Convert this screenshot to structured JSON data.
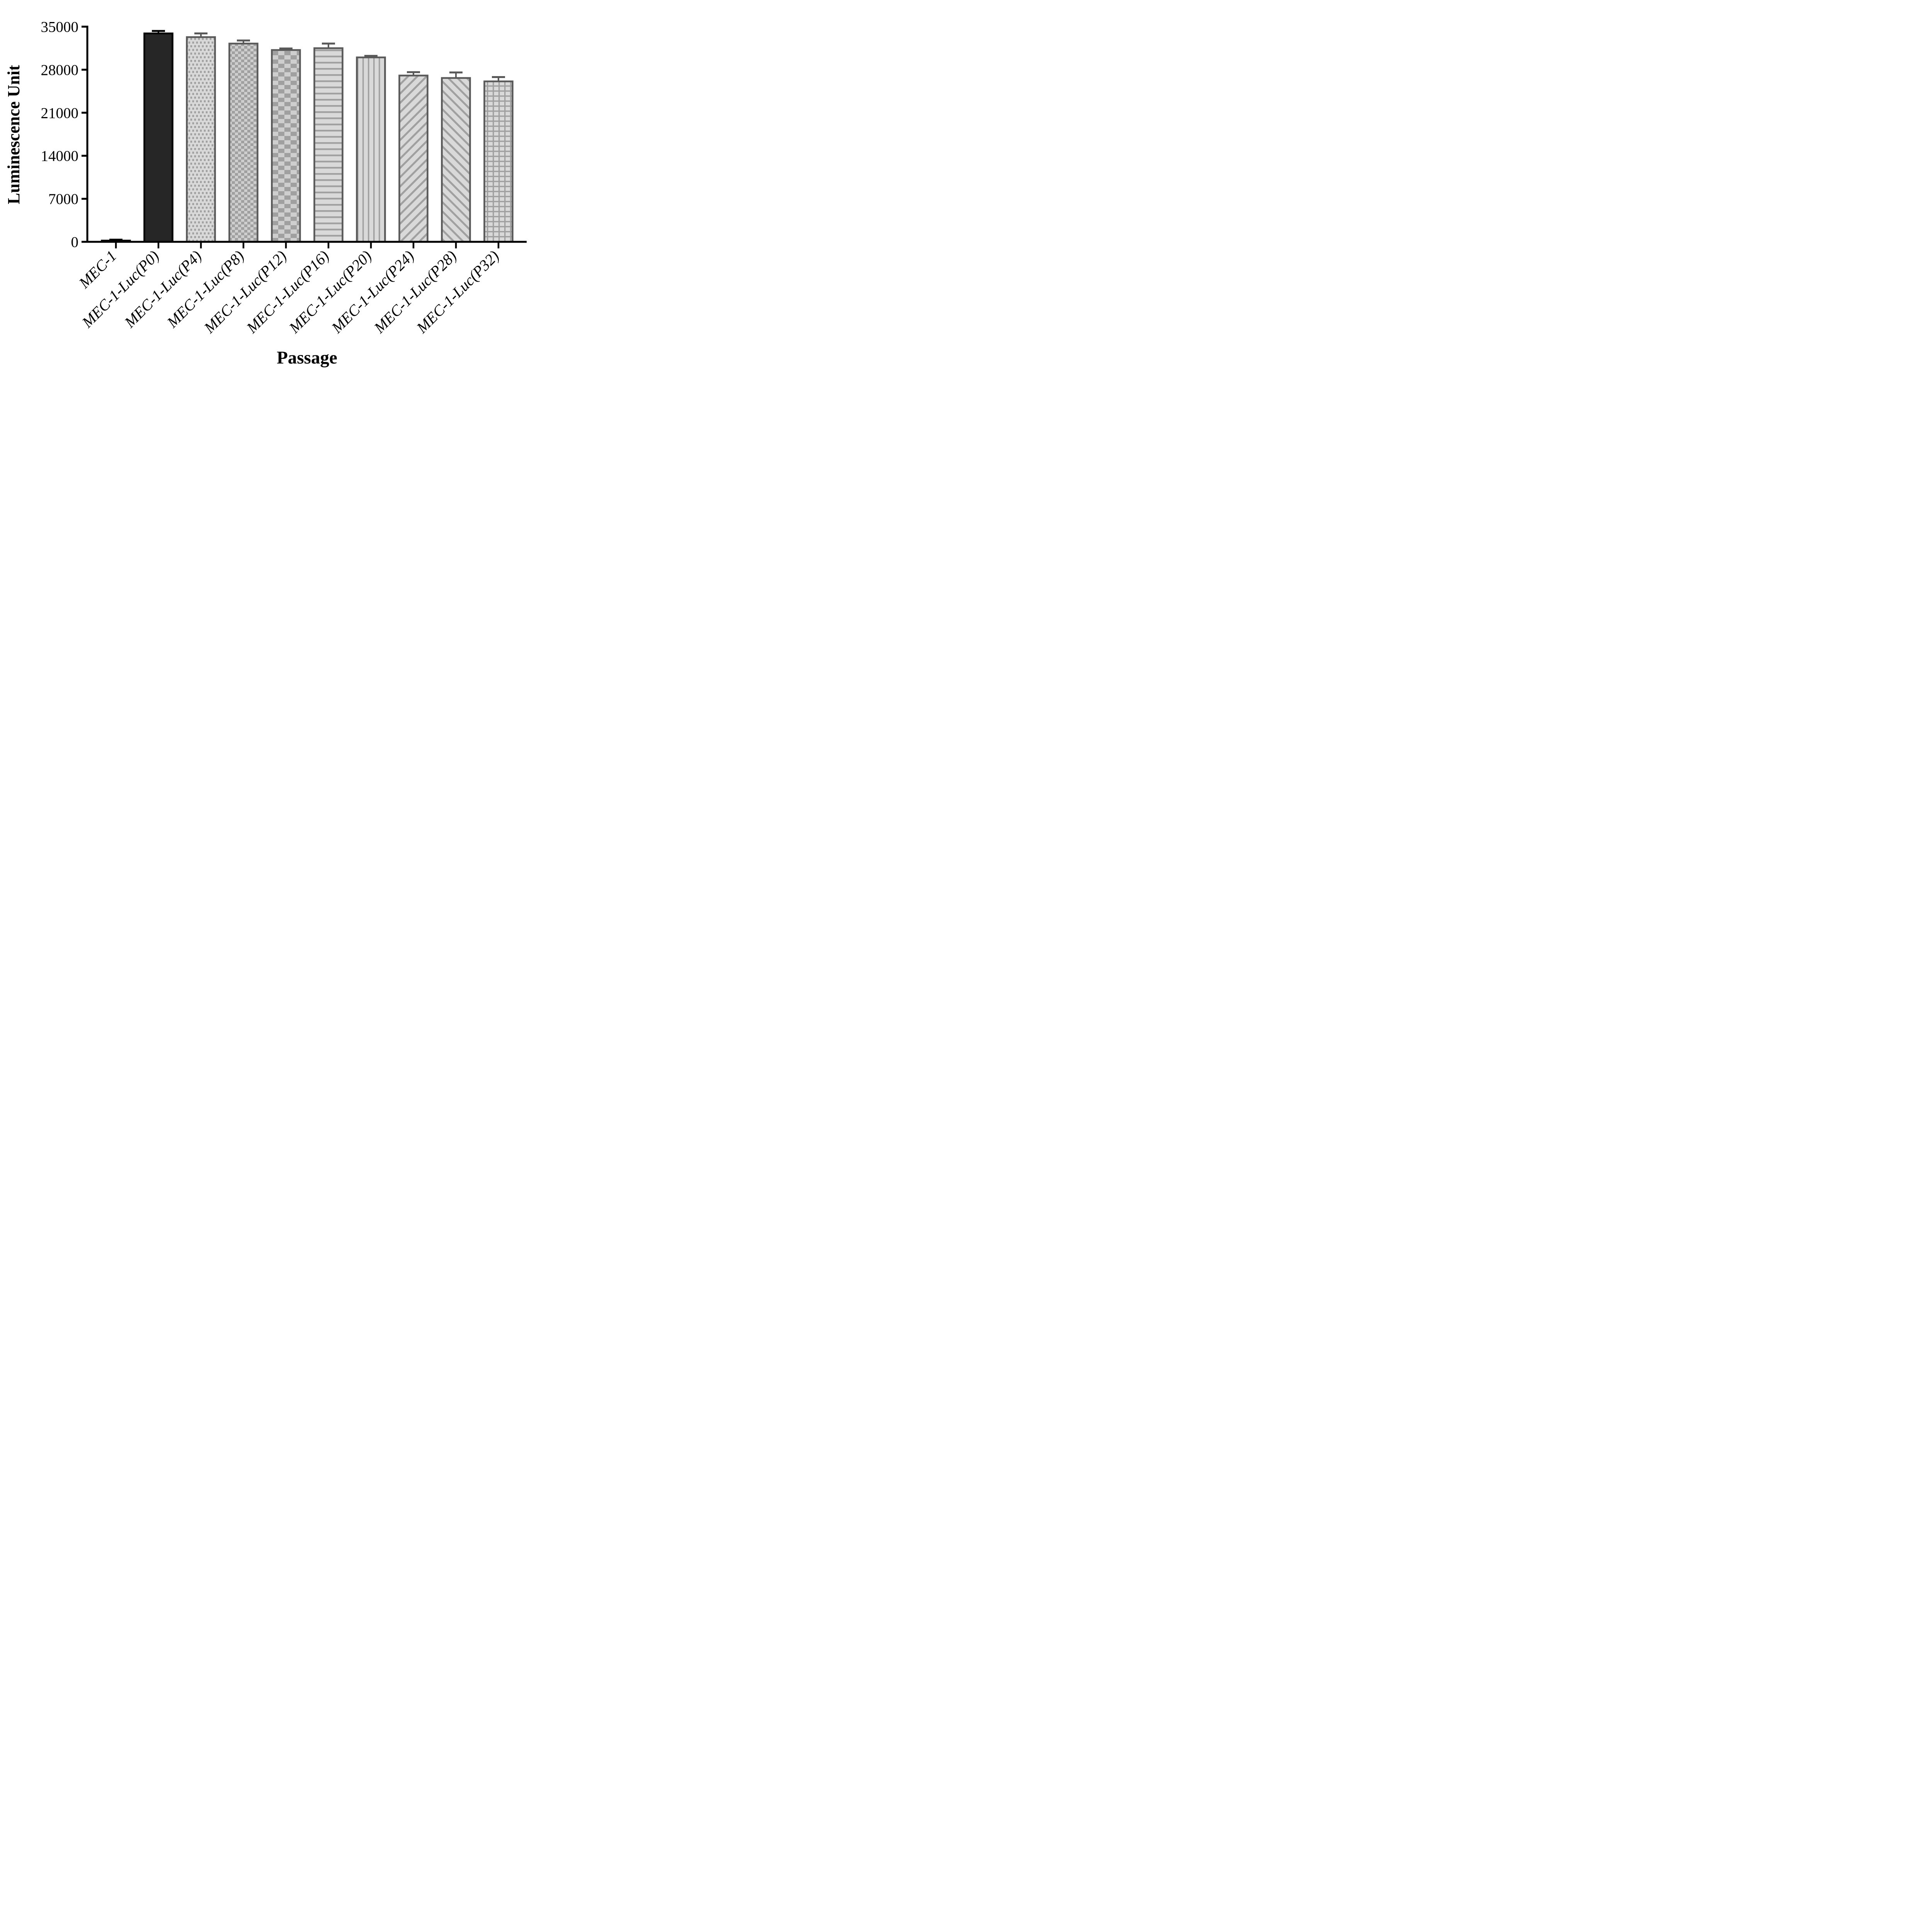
{
  "chart_data": {
    "type": "bar",
    "title": "",
    "xlabel": "Passage",
    "ylabel": "Luminescence Unit",
    "categories": [
      "MEC-1",
      "MEC-1-Luc(P0)",
      "MEC-1-Luc(P4)",
      "MEC-1-Luc(P8)",
      "MEC-1-Luc(P12)",
      "MEC-1-Luc(P16)",
      "MEC-1-Luc(P20)",
      "MEC-1-Luc(P24)",
      "MEC-1-Luc(P28)",
      "MEC-1-Luc(P32)"
    ],
    "values": [
      200,
      33900,
      33300,
      32250,
      31200,
      31500,
      30000,
      27050,
      26650,
      26100
    ],
    "errors": [
      150,
      400,
      600,
      500,
      250,
      750,
      250,
      550,
      900,
      700
    ],
    "error_bars": "upper-sd-whisker-with-cap",
    "bar_patterns": [
      "solid-black",
      "solid-dark",
      "dots",
      "checker-small",
      "checker-large",
      "horizontal-lines",
      "vertical-lines",
      "diagonal-up",
      "diagonal-down",
      "grid"
    ],
    "ylim": [
      0,
      35000
    ],
    "yticks": [
      0,
      7000,
      14000,
      21000,
      28000,
      35000
    ],
    "grid": "off",
    "legend": "none",
    "style": {
      "background": "#ffffff",
      "axis_color": "#000000",
      "bar_background": "#d9d9d9",
      "checker_light": "#cecece",
      "pattern_color": "#a0a0a0",
      "border_gray": "#595959",
      "solid_black": "#000000",
      "solid_dark": "#262626"
    }
  }
}
